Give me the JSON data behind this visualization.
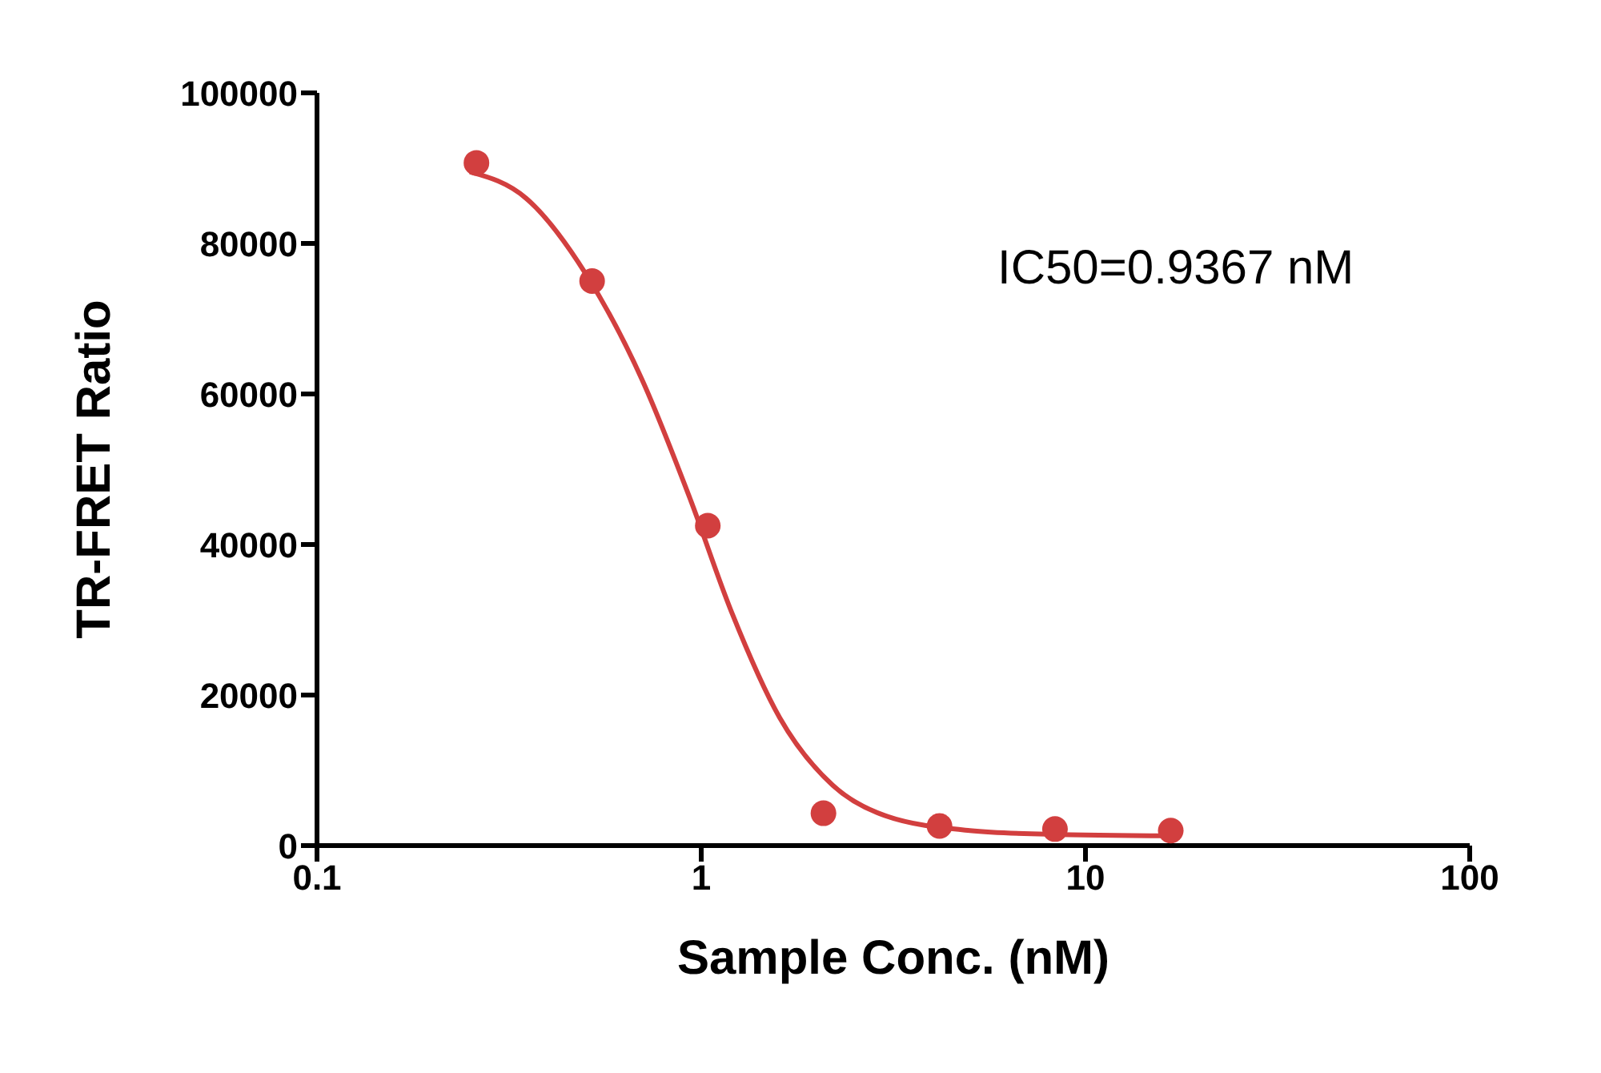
{
  "chart_data": {
    "type": "scatter",
    "xlabel": "Sample Conc. (nM)",
    "ylabel": "TR-FRET Ratio",
    "annotations": [
      "IC50=0.9367 nM"
    ],
    "log": "x",
    "xlim": [
      0.1,
      100
    ],
    "xticks": [
      0.1,
      1,
      10,
      100
    ],
    "ylim": [
      0,
      100000
    ],
    "yticks": [
      0,
      20000,
      40000,
      60000,
      80000,
      100000
    ],
    "grid": false,
    "legend": false,
    "series": [
      {
        "color": "#d23f3f",
        "marker": "circle",
        "x": [
          0.26,
          0.52,
          1.04,
          2.08,
          4.17,
          8.33,
          16.67
        ],
        "values": [
          90700,
          75000,
          42500,
          4300,
          2600,
          2200,
          2000
        ]
      },
      {
        "type": "line",
        "color": "#d23f3f",
        "marker": "none",
        "line_style": "solid",
        "x": [
          0.25,
          0.35,
          0.5,
          0.7,
          0.9367,
          1.2,
          1.6,
          2.2,
          3,
          5,
          8,
          16.67
        ],
        "values": [
          89500,
          86000,
          76000,
          62000,
          46000,
          31000,
          17000,
          8000,
          4000,
          2000,
          1500,
          1300
        ]
      }
    ]
  }
}
